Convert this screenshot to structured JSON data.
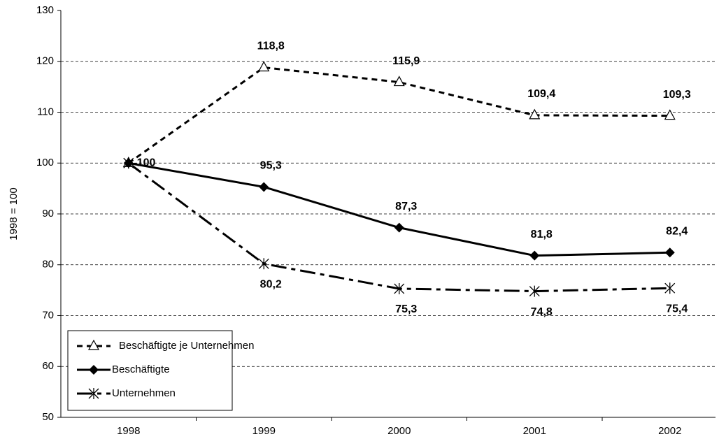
{
  "chart_data": {
    "type": "line",
    "y_label": "1998 = 100",
    "categories": [
      "1998",
      "1999",
      "2000",
      "2001",
      "2002"
    ],
    "series": [
      {
        "name": "Beschäftigte je Unternehmen",
        "color": "#000000",
        "marker": "triangle",
        "dash": "short",
        "values": [
          100,
          118.8,
          115.9,
          109.4,
          109.3
        ],
        "value_labels": [
          null,
          "118,8",
          "115,9",
          "109,4",
          "109,3"
        ]
      },
      {
        "name": "Beschäftigte",
        "color": "#000000",
        "marker": "diamond",
        "dash": "solid",
        "values": [
          100,
          95.3,
          87.3,
          81.8,
          82.4
        ],
        "value_labels": [
          "100",
          "95,3",
          "87,3",
          "81,8",
          "82,4"
        ]
      },
      {
        "name": "Unternehmen",
        "color": "#000000",
        "marker": "asterisk",
        "dash": "long",
        "values": [
          100,
          80.2,
          75.3,
          74.8,
          75.4
        ],
        "value_labels": [
          null,
          "80,2",
          "75,3",
          "74,8",
          "75,4"
        ]
      }
    ],
    "ylim": [
      50,
      130
    ],
    "yticks": [
      50,
      60,
      70,
      80,
      90,
      100,
      110,
      120,
      130
    ],
    "grid": true,
    "legend": "lower left"
  }
}
